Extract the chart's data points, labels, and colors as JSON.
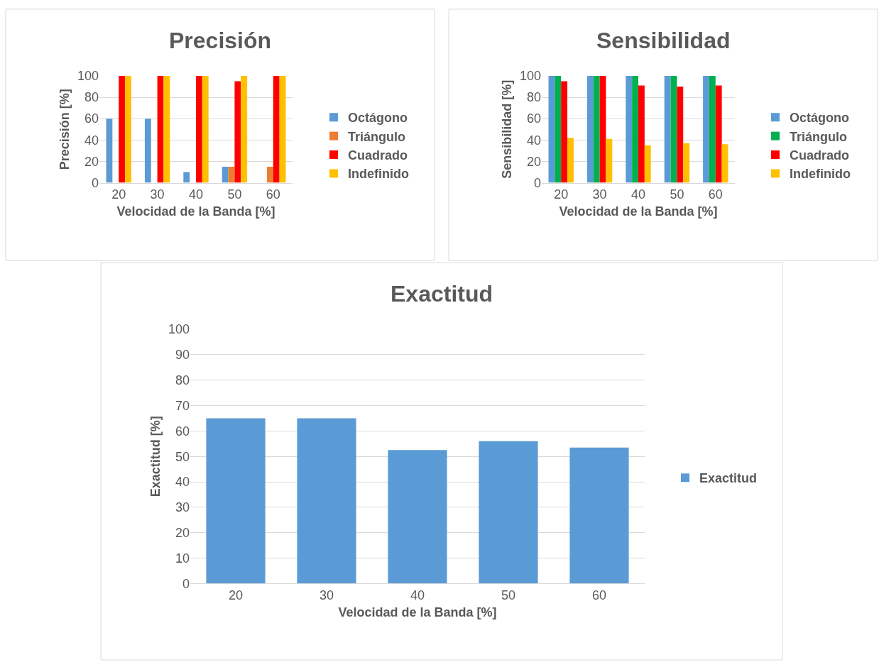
{
  "chart_data": [
    {
      "type": "bar",
      "title": "Precisión",
      "xlabel": "Velocidad de la Banda [%]",
      "ylabel": "Precisión [%]",
      "categories": [
        "20",
        "30",
        "40",
        "50",
        "60"
      ],
      "ylim": [
        0,
        100
      ],
      "yticks": [
        0,
        20,
        40,
        60,
        80,
        100
      ],
      "grid": "y",
      "legend": "right",
      "series": [
        {
          "name": "Octágono",
          "color": "#5b9bd5",
          "values": [
            60,
            60,
            10,
            15,
            0
          ]
        },
        {
          "name": "Triángulo",
          "color": "#ed7d31",
          "values": [
            0,
            0,
            0,
            15,
            15
          ]
        },
        {
          "name": "Cuadrado",
          "color": "#ff0000",
          "values": [
            100,
            100,
            100,
            95,
            100
          ]
        },
        {
          "name": "Indefinido",
          "color": "#ffc000",
          "values": [
            100,
            100,
            100,
            100,
            100
          ]
        }
      ]
    },
    {
      "type": "bar",
      "title": "Sensibilidad",
      "xlabel": "Velocidad de la Banda [%]",
      "ylabel": "Sensibilidad [%]",
      "categories": [
        "20",
        "30",
        "40",
        "50",
        "60"
      ],
      "ylim": [
        0,
        100
      ],
      "yticks": [
        0,
        20,
        40,
        60,
        80,
        100
      ],
      "grid": "y",
      "legend": "right",
      "series": [
        {
          "name": "Octágono",
          "color": "#5b9bd5",
          "values": [
            100,
            100,
            100,
            100,
            100
          ]
        },
        {
          "name": "Triángulo",
          "color": "#00b050",
          "values": [
            100,
            100,
            100,
            100,
            100
          ]
        },
        {
          "name": "Cuadrado",
          "color": "#ff0000",
          "values": [
            95,
            100,
            91,
            90,
            91
          ]
        },
        {
          "name": "Indefinido",
          "color": "#ffc000",
          "values": [
            42,
            41,
            35,
            37,
            36
          ]
        }
      ]
    },
    {
      "type": "bar",
      "title": "Exactitud",
      "xlabel": "Velocidad de la Banda [%]",
      "ylabel": "Exactitud [%]",
      "categories": [
        "20",
        "30",
        "40",
        "50",
        "60"
      ],
      "ylim": [
        0,
        100
      ],
      "yticks": [
        0,
        10,
        20,
        30,
        40,
        50,
        60,
        70,
        80,
        90,
        100
      ],
      "grid": "y",
      "legend": "right",
      "series": [
        {
          "name": "Exactitud",
          "color": "#5b9bd5",
          "values": [
            65,
            65,
            52.5,
            56,
            53.5
          ]
        }
      ]
    }
  ]
}
